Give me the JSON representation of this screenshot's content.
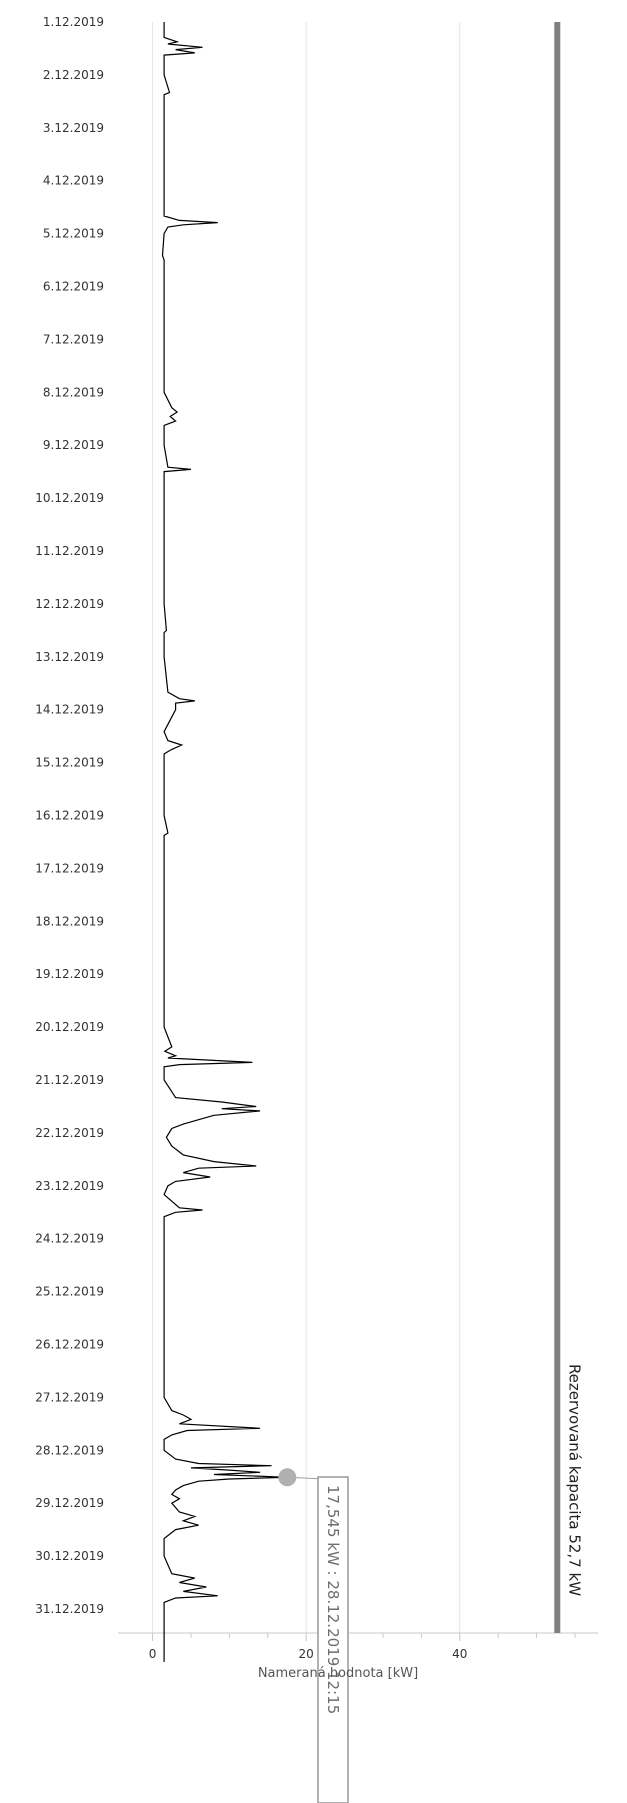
{
  "chart_data": {
    "type": "line",
    "orientation": "horizontal-value-axis",
    "xlabel": "Nameraná hodnota [kW]",
    "xlim": [
      -4.5,
      58
    ],
    "x_ticks": [
      0,
      20,
      40
    ],
    "date_ticks": [
      "1.12.2019",
      "2.12.2019",
      "3.12.2019",
      "4.12.2019",
      "5.12.2019",
      "6.12.2019",
      "7.12.2019",
      "8.12.2019",
      "9.12.2019",
      "10.12.2019",
      "11.12.2019",
      "12.12.2019",
      "13.12.2019",
      "14.12.2019",
      "15.12.2019",
      "16.12.2019",
      "17.12.2019",
      "18.12.2019",
      "19.12.2019",
      "20.12.2019",
      "21.12.2019",
      "22.12.2019",
      "23.12.2019",
      "24.12.2019",
      "25.12.2019",
      "26.12.2019",
      "27.12.2019",
      "28.12.2019",
      "29.12.2019",
      "30.12.2019",
      "31.12.2019"
    ],
    "series": [
      {
        "values": [
          [
            "1.12.2019 00:00",
            1.5
          ],
          [
            "1.12.2019 07:00",
            1.5
          ],
          [
            "1.12.2019 09:00",
            3.2
          ],
          [
            "1.12.2019 10:00",
            2.0
          ],
          [
            "1.12.2019 11:30",
            6.5
          ],
          [
            "1.12.2019 12:30",
            3.0
          ],
          [
            "1.12.2019 14:00",
            5.5
          ],
          [
            "1.12.2019 15:00",
            1.5
          ],
          [
            "2.12.2019 00:00",
            1.5
          ],
          [
            "2.12.2019 08:00",
            2.2
          ],
          [
            "2.12.2019 09:00",
            1.5
          ],
          [
            "3.12.2019 00:00",
            1.5
          ],
          [
            "4.12.2019 00:00",
            1.5
          ],
          [
            "4.12.2019 16:00",
            1.5
          ],
          [
            "4.12.2019 18:00",
            3.5
          ],
          [
            "4.12.2019 19:00",
            8.5
          ],
          [
            "4.12.2019 20:00",
            4.0
          ],
          [
            "4.12.2019 21:00",
            2.0
          ],
          [
            "5.12.2019 00:00",
            1.5
          ],
          [
            "5.12.2019 10:00",
            1.3
          ],
          [
            "5.12.2019 12:00",
            1.5
          ],
          [
            "6.12.2019 00:00",
            1.5
          ],
          [
            "7.12.2019 00:00",
            1.5
          ],
          [
            "8.12.2019 00:00",
            1.5
          ],
          [
            "8.12.2019 07:00",
            2.5
          ],
          [
            "8.12.2019 09:00",
            3.2
          ],
          [
            "8.12.2019 11:00",
            2.3
          ],
          [
            "8.12.2019 13:00",
            3.0
          ],
          [
            "8.12.2019 15:00",
            1.5
          ],
          [
            "9.12.2019 00:00",
            1.5
          ],
          [
            "9.12.2019 10:00",
            2.0
          ],
          [
            "9.12.2019 11:00",
            5.0
          ],
          [
            "9.12.2019 12:00",
            1.5
          ],
          [
            "10.12.2019 00:00",
            1.5
          ],
          [
            "11.12.2019 00:00",
            1.5
          ],
          [
            "12.12.2019 00:00",
            1.5
          ],
          [
            "12.12.2019 12:00",
            1.8
          ],
          [
            "12.12.2019 13:00",
            1.5
          ],
          [
            "13.12.2019 00:00",
            1.5
          ],
          [
            "13.12.2019 16:00",
            2.0
          ],
          [
            "13.12.2019 19:00",
            3.5
          ],
          [
            "13.12.2019 20:00",
            5.5
          ],
          [
            "13.12.2019 21:00",
            3.0
          ],
          [
            "14.12.2019 00:00",
            3.0
          ],
          [
            "14.12.2019 10:00",
            1.5
          ],
          [
            "14.12.2019 14:00",
            2.0
          ],
          [
            "14.12.2019 16:00",
            3.8
          ],
          [
            "14.12.2019 18:00",
            2.5
          ],
          [
            "14.12.2019 20:00",
            1.5
          ],
          [
            "15.12.2019 00:00",
            1.5
          ],
          [
            "16.12.2019 00:00",
            1.5
          ],
          [
            "16.12.2019 08:00",
            2.0
          ],
          [
            "16.12.2019 09:00",
            1.5
          ],
          [
            "17.12.2019 00:00",
            1.5
          ],
          [
            "18.12.2019 00:00",
            1.5
          ],
          [
            "19.12.2019 00:00",
            1.5
          ],
          [
            "20.12.2019 00:00",
            1.5
          ],
          [
            "20.12.2019 09:00",
            2.5
          ],
          [
            "20.12.2019 11:00",
            1.6
          ],
          [
            "20.12.2019 13:00",
            3.0
          ],
          [
            "20.12.2019 14:00",
            2.0
          ],
          [
            "20.12.2019 16:00",
            13.0
          ],
          [
            "20.12.2019 17:00",
            3.5
          ],
          [
            "20.12.2019 18:00",
            1.5
          ],
          [
            "21.12.2019 00:00",
            1.5
          ],
          [
            "21.12.2019 08:00",
            3.0
          ],
          [
            "21.12.2019 10:00",
            9.0
          ],
          [
            "21.12.2019 12:00",
            13.5
          ],
          [
            "21.12.2019 13:00",
            9.0
          ],
          [
            "21.12.2019 14:00",
            14.0
          ],
          [
            "21.12.2019 16:00",
            8.0
          ],
          [
            "21.12.2019 18:00",
            6.0
          ],
          [
            "21.12.2019 20:00",
            4.0
          ],
          [
            "21.12.2019 22:00",
            2.5
          ],
          [
            "22.12.2019 02:00",
            1.8
          ],
          [
            "22.12.2019 06:00",
            2.5
          ],
          [
            "22.12.2019 10:00",
            4.0
          ],
          [
            "22.12.2019 13:00",
            8.0
          ],
          [
            "22.12.2019 15:00",
            13.5
          ],
          [
            "22.12.2019 16:00",
            6.0
          ],
          [
            "22.12.2019 18:00",
            4.0
          ],
          [
            "22.12.2019 20:00",
            7.5
          ],
          [
            "22.12.2019 22:00",
            3.0
          ],
          [
            "23.12.2019 00:00",
            2.0
          ],
          [
            "23.12.2019 04:00",
            1.5
          ],
          [
            "23.12.2019 10:00",
            3.5
          ],
          [
            "23.12.2019 11:00",
            6.5
          ],
          [
            "23.12.2019 12:00",
            3.0
          ],
          [
            "23.12.2019 14:00",
            1.5
          ],
          [
            "24.12.2019 00:00",
            1.5
          ],
          [
            "25.12.2019 00:00",
            1.5
          ],
          [
            "26.12.2019 00:00",
            1.5
          ],
          [
            "27.12.2019 00:00",
            1.5
          ],
          [
            "27.12.2019 06:00",
            2.5
          ],
          [
            "27.12.2019 08:00",
            4.0
          ],
          [
            "27.12.2019 10:00",
            5.0
          ],
          [
            "27.12.2019 12:00",
            3.5
          ],
          [
            "27.12.2019 14:00",
            14.0
          ],
          [
            "27.12.2019 15:00",
            4.5
          ],
          [
            "27.12.2019 17:00",
            2.5
          ],
          [
            "27.12.2019 19:00",
            1.5
          ],
          [
            "28.12.2019 00:00",
            1.5
          ],
          [
            "28.12.2019 04:00",
            3.0
          ],
          [
            "28.12.2019 06:00",
            6.0
          ],
          [
            "28.12.2019 07:00",
            15.5
          ],
          [
            "28.12.2019 08:00",
            5.0
          ],
          [
            "28.12.2019 09:00",
            10.0
          ],
          [
            "28.12.2019 10:00",
            14.0
          ],
          [
            "28.12.2019 11:00",
            8.0
          ],
          [
            "28.12.2019 12:15",
            17.545
          ],
          [
            "28.12.2019 13:00",
            10.0
          ],
          [
            "28.12.2019 14:00",
            6.0
          ],
          [
            "28.12.2019 16:00",
            4.0
          ],
          [
            "28.12.2019 18:00",
            3.0
          ],
          [
            "28.12.2019 20:00",
            2.5
          ],
          [
            "28.12.2019 22:00",
            3.5
          ],
          [
            "29.12.2019 00:00",
            2.5
          ],
          [
            "29.12.2019 04:00",
            3.5
          ],
          [
            "29.12.2019 06:00",
            5.5
          ],
          [
            "29.12.2019 08:00",
            4.0
          ],
          [
            "29.12.2019 10:00",
            6.0
          ],
          [
            "29.12.2019 12:00",
            3.0
          ],
          [
            "29.12.2019 16:00",
            1.5
          ],
          [
            "30.12.2019 00:00",
            1.5
          ],
          [
            "30.12.2019 08:00",
            2.5
          ],
          [
            "30.12.2019 10:00",
            5.5
          ],
          [
            "30.12.2019 12:00",
            3.5
          ],
          [
            "30.12.2019 14:00",
            7.0
          ],
          [
            "30.12.2019 16:00",
            4.0
          ],
          [
            "30.12.2019 18:00",
            8.5
          ],
          [
            "30.12.2019 19:00",
            3.0
          ],
          [
            "30.12.2019 21:00",
            1.5
          ],
          [
            "31.12.2019 00:00",
            1.5
          ],
          [
            "1.1.2020 00:00",
            1.5
          ]
        ]
      }
    ],
    "reserved_capacity": {
      "value": 52.7,
      "label": "Rezervovaná kapacita 52,7 kW"
    },
    "tooltip": {
      "point": [
        "28.12.2019 12:15",
        17.545
      ],
      "text": "17,545 kW : 28.12.2019 12:15"
    },
    "grid": true,
    "colors": {
      "line": "#000000",
      "capacity": "#808080",
      "marker": "#b0b0b0",
      "grid": "#e4e4e4"
    }
  }
}
